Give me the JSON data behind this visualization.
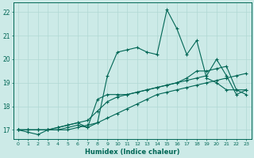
{
  "title": "",
  "xlabel": "Humidex (Indice chaleur)",
  "ylabel": "",
  "xlim": [
    -0.5,
    23.5
  ],
  "ylim": [
    16.6,
    22.4
  ],
  "xticks": [
    0,
    1,
    2,
    3,
    4,
    5,
    6,
    7,
    8,
    9,
    10,
    11,
    12,
    13,
    14,
    15,
    16,
    17,
    18,
    19,
    20,
    21,
    22,
    23
  ],
  "yticks": [
    17,
    18,
    19,
    20,
    21,
    22
  ],
  "background_color": "#cceae7",
  "grid_color": "#b0d8d4",
  "line_color": "#006655",
  "marker": "+",
  "marker_size": 3.0,
  "line_width": 0.8,
  "hours": [
    0,
    1,
    2,
    3,
    4,
    5,
    6,
    7,
    8,
    9,
    10,
    11,
    12,
    13,
    14,
    15,
    16,
    17,
    18,
    19,
    20,
    21,
    22,
    23
  ],
  "line_jagged": [
    17.0,
    16.9,
    16.8,
    17.0,
    17.0,
    17.1,
    17.2,
    17.1,
    17.3,
    19.3,
    20.3,
    20.4,
    20.5,
    20.3,
    20.2,
    22.1,
    21.3,
    20.2,
    20.8,
    19.2,
    19.0,
    18.7,
    18.7,
    18.7
  ],
  "line_smooth1": [
    17.0,
    17.0,
    17.0,
    17.0,
    17.0,
    17.0,
    17.1,
    17.2,
    17.3,
    17.5,
    17.7,
    17.9,
    18.1,
    18.3,
    18.5,
    18.6,
    18.7,
    18.8,
    18.9,
    19.0,
    19.1,
    19.2,
    19.3,
    19.4
  ],
  "line_smooth2": [
    17.0,
    17.0,
    17.0,
    17.0,
    17.1,
    17.2,
    17.3,
    17.4,
    17.8,
    18.2,
    18.4,
    18.5,
    18.6,
    18.7,
    18.8,
    18.9,
    19.0,
    19.2,
    19.5,
    19.5,
    19.6,
    19.7,
    18.7,
    18.5
  ],
  "line_mixed": [
    17.0,
    17.0,
    17.0,
    17.0,
    17.1,
    17.2,
    17.3,
    17.1,
    18.3,
    18.5,
    18.5,
    18.5,
    18.6,
    18.7,
    18.8,
    18.9,
    19.0,
    19.1,
    19.2,
    19.3,
    20.0,
    19.3,
    18.5,
    18.7
  ]
}
